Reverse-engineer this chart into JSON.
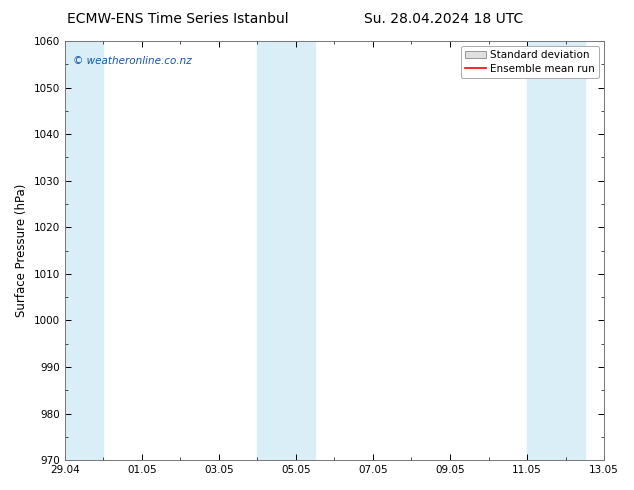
{
  "title_left": "ECMW-ENS Time Series Istanbul",
  "title_right": "Su. 28.04.2024 18 UTC",
  "ylabel": "Surface Pressure (hPa)",
  "ylim": [
    970,
    1060
  ],
  "yticks": [
    970,
    980,
    990,
    1000,
    1010,
    1020,
    1030,
    1040,
    1050,
    1060
  ],
  "xlim_start": 0.0,
  "xlim_end": 14.0,
  "xtick_positions": [
    0,
    2,
    4,
    6,
    8,
    10,
    12,
    14
  ],
  "xtick_labels": [
    "29.04",
    "01.05",
    "03.05",
    "05.05",
    "07.05",
    "09.05",
    "11.05",
    "13.05"
  ],
  "shaded_bands": [
    {
      "x_start": 0.0,
      "x_end": 1.0
    },
    {
      "x_start": 5.0,
      "x_end": 6.5
    },
    {
      "x_start": 12.0,
      "x_end": 13.5
    }
  ],
  "shade_color": "#daeef8",
  "ensemble_color": "#ff0000",
  "std_color": "#d0d0d0",
  "watermark": "© weatheronline.co.nz",
  "background_color": "#ffffff",
  "plot_bg_color": "#ffffff",
  "border_color": "#aaaaaa",
  "title_fontsize": 10,
  "tick_fontsize": 7.5,
  "label_fontsize": 8.5,
  "legend_fontsize": 7.5
}
